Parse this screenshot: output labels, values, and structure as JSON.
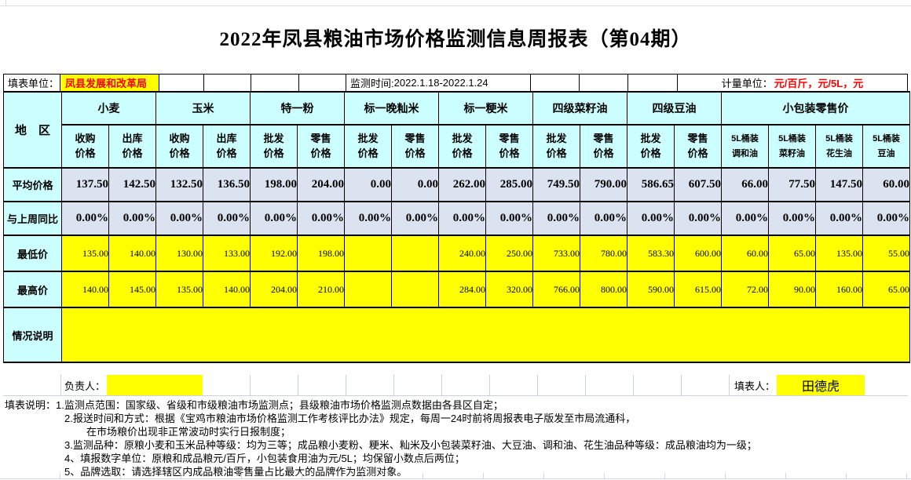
{
  "title": "2022年凤县粮油市场价格监测信息周报表（第04期）",
  "info_bar": {
    "unit_label": "填表单位：",
    "unit_value": "凤县发展和改革局",
    "time_label": "监测时间:",
    "time_value": "2022.1.18-2022.1.24",
    "measure_label": "计量单位：",
    "measure_value": "元/百斤，元/5L，元"
  },
  "table": {
    "region_header": "地　区",
    "groups": [
      {
        "label": "小麦",
        "subs": [
          "收购\n价格",
          "出库\n价格"
        ]
      },
      {
        "label": "玉米",
        "subs": [
          "收购\n价格",
          "出库\n价格"
        ]
      },
      {
        "label": "特一粉",
        "subs": [
          "批发\n价格",
          "零售\n价格"
        ]
      },
      {
        "label": "标一晚籼米",
        "subs": [
          "批发\n价格",
          "零售\n价格"
        ]
      },
      {
        "label": "标一粳米",
        "subs": [
          "批发\n价格",
          "零售\n价格"
        ]
      },
      {
        "label": "四级菜籽油",
        "subs": [
          "批发\n价格",
          "零售\n价格"
        ]
      },
      {
        "label": "四级豆油",
        "subs": [
          "批发\n价格",
          "零售\n价格"
        ]
      },
      {
        "label": "小包装零售价",
        "subs": [
          "5L桶装\n调和油",
          "5L桶装\n菜籽油",
          "5L桶装\n花生油",
          "5L桶装\n豆油"
        ]
      }
    ],
    "rows": [
      {
        "key": "average-price",
        "label": "平均价格",
        "style": "avg",
        "values": [
          "137.50",
          "142.50",
          "132.50",
          "136.50",
          "198.00",
          "204.00",
          "0.00",
          "0.00",
          "262.00",
          "285.00",
          "749.50",
          "790.00",
          "586.65",
          "607.50",
          "66.00",
          "77.50",
          "147.50",
          "60.00"
        ]
      },
      {
        "key": "week-over-week",
        "label": "与上周同比",
        "style": "avg",
        "values": [
          "0.00%",
          "0.00%",
          "0.00%",
          "0.00%",
          "0.00%",
          "0.00%",
          "0.00%",
          "0.00%",
          "0.00%",
          "0.00%",
          "0.00%",
          "0.00%",
          "0.00%",
          "0.00%",
          "0.00%",
          "0.00%",
          "0.00%",
          "0.00%"
        ]
      },
      {
        "key": "lowest-price",
        "label": "最低价",
        "style": "minmax",
        "values": [
          "135.00",
          "140.00",
          "130.00",
          "133.00",
          "192.00",
          "198.00",
          "",
          "",
          "240.00",
          "250.00",
          "733.00",
          "780.00",
          "583.30",
          "600.00",
          "60.00",
          "65.00",
          "135.00",
          "55.00"
        ]
      },
      {
        "key": "highest-price",
        "label": "最高价",
        "style": "minmax",
        "values": [
          "140.00",
          "145.00",
          "135.00",
          "140.00",
          "204.00",
          "210.00",
          "",
          "",
          "284.00",
          "320.00",
          "766.00",
          "800.00",
          "590.00",
          "615.00",
          "72.00",
          "90.00",
          "160.00",
          "65.00"
        ]
      }
    ],
    "note_row_label": "情况说明",
    "note_row_value": ""
  },
  "signature": {
    "responsible_label": "负责人：",
    "responsible_value": "",
    "filler_label": "填表人：",
    "filler_value": "田德虎"
  },
  "footnotes": [
    {
      "indent": 0,
      "text": "填表说明：1.监测点范围：国家级、省级和市级粮油市场监测点；县级粮油市场价格监测点数据由各县区自定；"
    },
    {
      "indent": 1,
      "text": "2.报送时间和方式：根据《宝鸡市粮油市场价格监测工作考核评比办法》规定，每周一24时前将周报表电子版发至市局流通科，"
    },
    {
      "indent": 2,
      "text": "在市场粮价出现非正常波动时实行日报制度；"
    },
    {
      "indent": 1,
      "text": "3.监测品种：原粮小麦和玉米品种等级：均为三等；成品粮小麦粉、粳米、籼米及小包装菜籽油、大豆油、调和油、花生油品种等级：成品粮油均为一级；"
    },
    {
      "indent": 1,
      "text": "4、填报数字单位：原粮和成品粮元/百斤，小包装食用油为元/5L；均保留小数点后两位；"
    },
    {
      "indent": 1,
      "text": "5、品牌选取：请选择辖区内成品粮油零售量占比最大的品牌作为监测对象。"
    }
  ],
  "colors": {
    "header_bg": "#CCFFFF",
    "data_bg": "#DCE3F0",
    "highlight_bg": "#FFFF00",
    "accent_text": "#FF0000",
    "border": "#000000",
    "gridline": "#C9D3E0"
  }
}
